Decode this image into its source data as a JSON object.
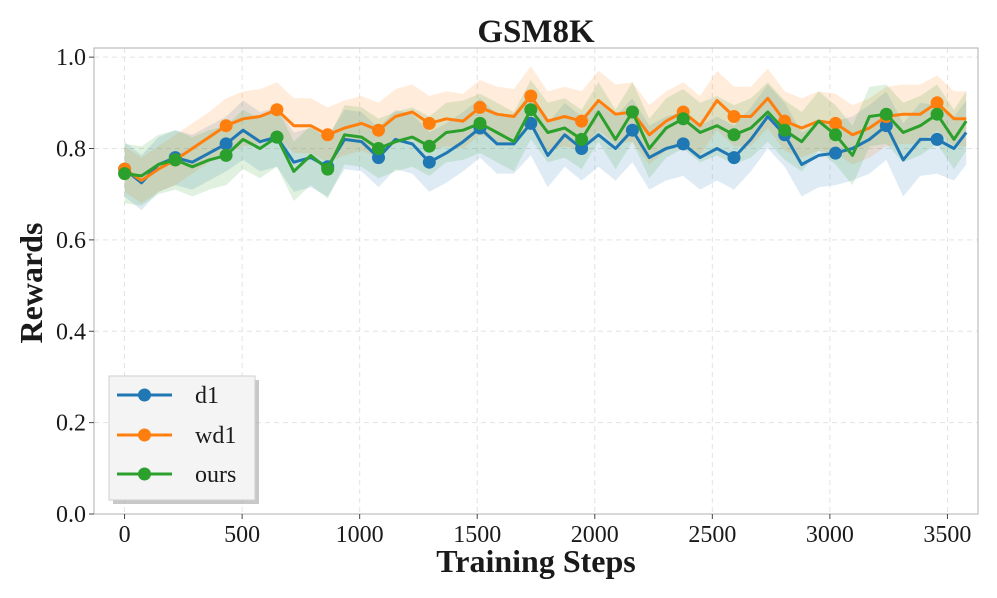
{
  "chart_data": {
    "type": "line",
    "title": "GSM8K",
    "xlabel": "Training Steps",
    "ylabel": "Rewards",
    "xlim": [
      -130,
      3630
    ],
    "ylim": [
      0.0,
      1.02
    ],
    "xticks": [
      0,
      500,
      1000,
      1500,
      2000,
      2500,
      3000,
      3500
    ],
    "xtick_labels": [
      "0",
      "500",
      "1000",
      "1500",
      "2000",
      "2500",
      "3000",
      "3500"
    ],
    "yticks": [
      0.0,
      0.2,
      0.4,
      0.6,
      0.8,
      1.0
    ],
    "ytick_labels": [
      "0.0",
      "0.2",
      "0.4",
      "0.6",
      "0.8",
      "1.0"
    ],
    "grid": true,
    "legend_position": "bottom-left",
    "x": [
      0,
      72,
      144,
      216,
      288,
      360,
      432,
      504,
      576,
      648,
      720,
      792,
      864,
      936,
      1008,
      1080,
      1152,
      1224,
      1296,
      1368,
      1440,
      1512,
      1584,
      1656,
      1728,
      1800,
      1872,
      1944,
      2016,
      2088,
      2160,
      2232,
      2304,
      2376,
      2448,
      2520,
      2592,
      2664,
      2736,
      2808,
      2880,
      2952,
      3024,
      3096,
      3168,
      3240,
      3312,
      3384,
      3456,
      3528,
      3580
    ],
    "series": [
      {
        "name": "d1",
        "color": "#1f77b4",
        "values": [
          0.755,
          0.725,
          0.765,
          0.78,
          0.77,
          0.79,
          0.81,
          0.84,
          0.815,
          0.825,
          0.77,
          0.78,
          0.76,
          0.82,
          0.815,
          0.78,
          0.82,
          0.81,
          0.77,
          0.79,
          0.815,
          0.845,
          0.81,
          0.81,
          0.855,
          0.785,
          0.83,
          0.8,
          0.83,
          0.8,
          0.84,
          0.78,
          0.8,
          0.81,
          0.78,
          0.8,
          0.78,
          0.82,
          0.87,
          0.83,
          0.765,
          0.785,
          0.79,
          0.8,
          0.82,
          0.85,
          0.775,
          0.82,
          0.82,
          0.8,
          0.835
        ],
        "band": [
          0.06,
          0.06,
          0.06,
          0.06,
          0.06,
          0.06,
          0.06,
          0.065,
          0.065,
          0.065,
          0.065,
          0.065,
          0.065,
          0.065,
          0.065,
          0.065,
          0.065,
          0.065,
          0.065,
          0.065,
          0.065,
          0.065,
          0.065,
          0.065,
          0.07,
          0.07,
          0.07,
          0.07,
          0.07,
          0.07,
          0.07,
          0.07,
          0.07,
          0.07,
          0.07,
          0.07,
          0.07,
          0.07,
          0.07,
          0.07,
          0.07,
          0.07,
          0.07,
          0.07,
          0.075,
          0.075,
          0.08,
          0.08,
          0.075,
          0.07,
          0.07
        ]
      },
      {
        "name": "wd1",
        "color": "#ff7f0e",
        "values": [
          0.755,
          0.73,
          0.755,
          0.775,
          0.8,
          0.825,
          0.85,
          0.865,
          0.87,
          0.885,
          0.85,
          0.85,
          0.83,
          0.845,
          0.855,
          0.84,
          0.87,
          0.88,
          0.855,
          0.865,
          0.86,
          0.89,
          0.875,
          0.87,
          0.915,
          0.86,
          0.87,
          0.86,
          0.905,
          0.875,
          0.88,
          0.83,
          0.86,
          0.88,
          0.85,
          0.905,
          0.87,
          0.87,
          0.91,
          0.86,
          0.845,
          0.86,
          0.855,
          0.83,
          0.845,
          0.87,
          0.875,
          0.875,
          0.9,
          0.865,
          0.865
        ],
        "band": [
          0.05,
          0.05,
          0.05,
          0.055,
          0.055,
          0.055,
          0.06,
          0.06,
          0.06,
          0.06,
          0.06,
          0.06,
          0.06,
          0.06,
          0.06,
          0.06,
          0.06,
          0.06,
          0.06,
          0.06,
          0.06,
          0.06,
          0.06,
          0.06,
          0.065,
          0.065,
          0.065,
          0.065,
          0.065,
          0.065,
          0.065,
          0.065,
          0.065,
          0.065,
          0.065,
          0.065,
          0.065,
          0.065,
          0.065,
          0.065,
          0.065,
          0.065,
          0.065,
          0.065,
          0.065,
          0.065,
          0.065,
          0.065,
          0.06,
          0.06,
          0.06
        ]
      },
      {
        "name": "ours",
        "color": "#2ca02c",
        "values": [
          0.745,
          0.74,
          0.765,
          0.775,
          0.76,
          0.775,
          0.785,
          0.82,
          0.8,
          0.825,
          0.75,
          0.785,
          0.755,
          0.83,
          0.825,
          0.8,
          0.815,
          0.825,
          0.805,
          0.835,
          0.84,
          0.855,
          0.835,
          0.815,
          0.885,
          0.835,
          0.845,
          0.82,
          0.88,
          0.82,
          0.88,
          0.8,
          0.845,
          0.865,
          0.835,
          0.85,
          0.83,
          0.845,
          0.88,
          0.84,
          0.815,
          0.86,
          0.83,
          0.785,
          0.87,
          0.875,
          0.835,
          0.85,
          0.875,
          0.82,
          0.86
        ],
        "band": [
          0.065,
          0.065,
          0.065,
          0.065,
          0.065,
          0.065,
          0.065,
          0.065,
          0.065,
          0.065,
          0.065,
          0.065,
          0.065,
          0.065,
          0.065,
          0.065,
          0.065,
          0.065,
          0.065,
          0.065,
          0.065,
          0.065,
          0.065,
          0.065,
          0.065,
          0.065,
          0.065,
          0.065,
          0.065,
          0.065,
          0.065,
          0.065,
          0.065,
          0.065,
          0.065,
          0.065,
          0.065,
          0.065,
          0.065,
          0.065,
          0.065,
          0.065,
          0.065,
          0.065,
          0.065,
          0.065,
          0.065,
          0.065,
          0.065,
          0.065,
          0.065
        ]
      }
    ]
  }
}
